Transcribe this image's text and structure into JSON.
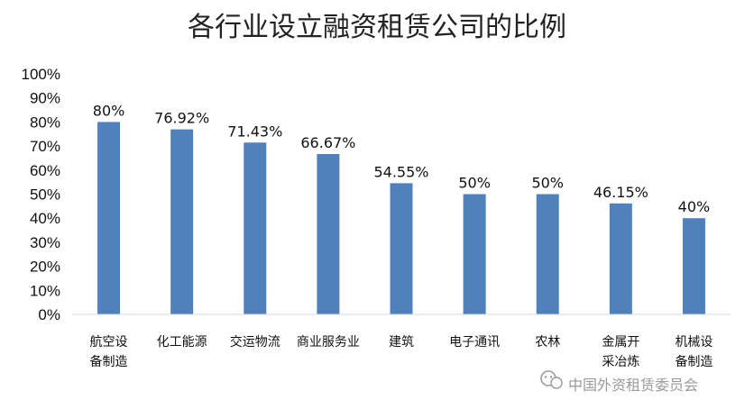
{
  "chart_data": {
    "type": "bar",
    "title": "各行业设立融资租赁公司的比例",
    "categories": [
      "航空设\n备制造",
      "化工能源",
      "交运物流",
      "商业服务业",
      "建筑",
      "电子通讯",
      "农林",
      "金属开\n采冶炼",
      "机械设\n备制造"
    ],
    "values": [
      80,
      76.92,
      71.43,
      66.67,
      54.55,
      50,
      50,
      46.15,
      40
    ],
    "data_labels": [
      "80%",
      "76.92%",
      "71.43%",
      "66.67%",
      "54.55%",
      "50%",
      "50%",
      "46.15%",
      "40%"
    ],
    "y_ticks": [
      "0%",
      "10%",
      "20%",
      "30%",
      "40%",
      "50%",
      "60%",
      "70%",
      "80%",
      "90%",
      "100%"
    ],
    "ylim": [
      0,
      100
    ],
    "xlabel": "",
    "ylabel": "",
    "grid": false,
    "legend": "none",
    "bar_color": "#4f81bd"
  },
  "watermark": {
    "icon": "wechat-icon",
    "text": "中国外资租赁委员会"
  }
}
